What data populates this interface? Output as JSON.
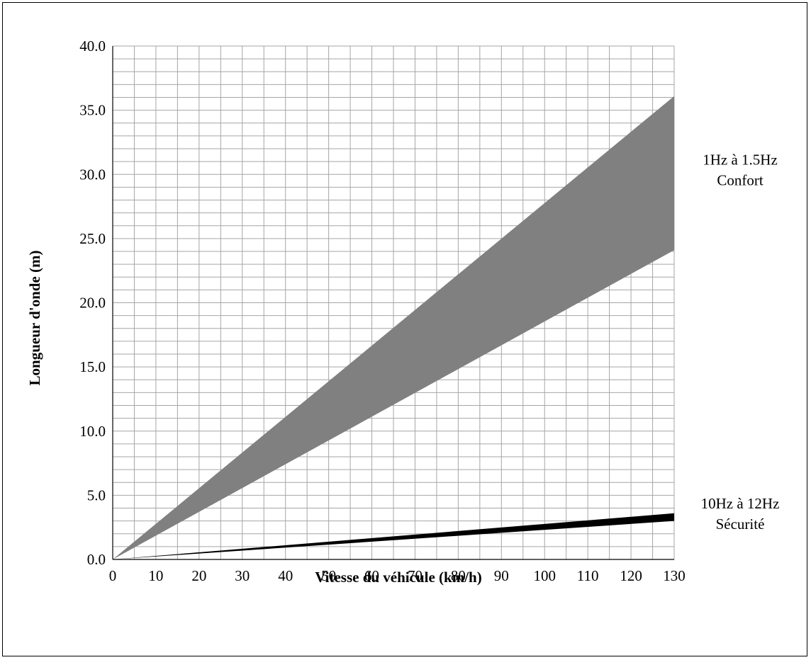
{
  "chart_data": {
    "type": "area",
    "xlabel": "Vitesse du véhicule (km/h)",
    "ylabel": "Longueur d'onde (m)",
    "xlim": [
      0,
      130
    ],
    "ylim": [
      0,
      40
    ],
    "x_ticks": [
      "0",
      "10",
      "20",
      "30",
      "40",
      "50",
      "60",
      "70",
      "80",
      "90",
      "100",
      "110",
      "120",
      "130"
    ],
    "y_ticks": [
      "0.0",
      "5.0",
      "10.0",
      "15.0",
      "20.0",
      "25.0",
      "30.0",
      "35.0",
      "40.0"
    ],
    "grid": true,
    "bands": [
      {
        "label_line1": "1Hz à 1.5Hz",
        "label_line2": "Confort",
        "color": "#808080",
        "x": [
          0,
          130
        ],
        "lower": [
          0,
          24.1
        ],
        "upper": [
          0,
          36.1
        ]
      },
      {
        "label_line1": "10Hz à 12Hz",
        "label_line2": "Sécurité",
        "color": "#000000",
        "x": [
          0,
          130
        ],
        "lower": [
          0,
          3.0
        ],
        "upper": [
          0,
          3.6
        ]
      }
    ]
  }
}
